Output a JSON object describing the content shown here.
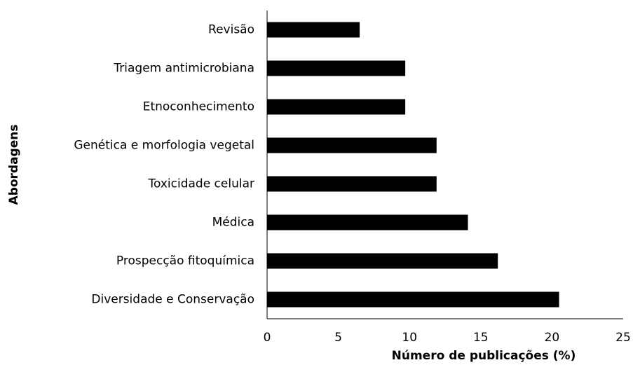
{
  "chart_data": {
    "type": "bar",
    "orientation": "horizontal",
    "x_label": "Número de publicações (%)",
    "y_label": "Abordagens",
    "categories": [
      "Revisão",
      "Triagem antimicrobiana",
      "Etnoconhecimento",
      "Genética e morfologia vegetal",
      "Toxicidade celular",
      "Médica",
      "Prospecção fitoquímica",
      "Diversidade e Conservação"
    ],
    "values": [
      6.5,
      9.7,
      9.7,
      11.9,
      11.9,
      14.1,
      16.2,
      20.5
    ],
    "color": "#000000",
    "xlim": [
      0,
      25
    ],
    "xticks": [
      0,
      5,
      10,
      15,
      20,
      25
    ],
    "grid": false
  }
}
